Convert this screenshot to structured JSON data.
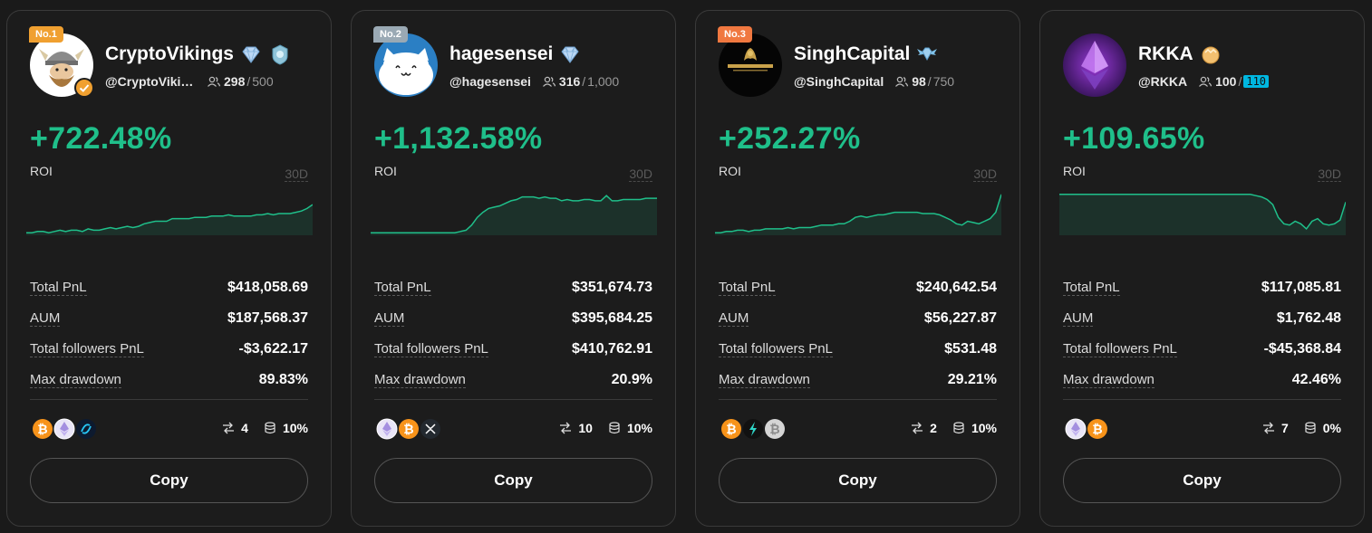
{
  "colors": {
    "positive": "#1fbf8a",
    "background": "#1c1c1c",
    "border": "#3a3a3a",
    "highlight": "#00b7e0"
  },
  "labels": {
    "roi": "ROI",
    "period": "30D",
    "total_pnl": "Total PnL",
    "aum": "AUM",
    "followers_pnl": "Total followers PnL",
    "max_drawdown": "Max drawdown",
    "copy": "Copy"
  },
  "cards": [
    {
      "rank": "No.1",
      "name": "CryptoVikings",
      "handle": "@CryptoVikings",
      "followers": "298",
      "capacity": "500",
      "roi": "+722.48%",
      "total_pnl": "$418,058.69",
      "aum": "$187,568.37",
      "followers_pnl": "-$3,622.17",
      "max_drawdown": "89.83%",
      "coins": [
        "bitcoin",
        "ethereum",
        "injective"
      ],
      "copy_trades": "4",
      "profit_share": "10%",
      "roi_series": [
        2,
        2,
        3,
        3,
        2,
        3,
        4,
        3,
        4,
        4,
        3,
        5,
        4,
        4,
        5,
        6,
        5,
        6,
        7,
        6,
        7,
        9,
        10,
        11,
        11,
        11,
        13,
        13,
        13,
        13,
        14,
        14,
        14,
        15,
        15,
        15,
        16,
        15,
        15,
        15,
        15,
        16,
        16,
        17,
        16,
        17,
        17,
        17,
        18,
        19,
        21,
        24
      ]
    },
    {
      "rank": "No.2",
      "name": "hagesensei",
      "handle": "@hagesensei",
      "followers": "316",
      "capacity": "1,000",
      "roi": "+1,132.58%",
      "total_pnl": "$351,674.73",
      "aum": "$395,684.25",
      "followers_pnl": "$410,762.91",
      "max_drawdown": "20.9%",
      "coins": [
        "ethereum",
        "bitcoin",
        "xrp"
      ],
      "copy_trades": "10",
      "profit_share": "10%",
      "roi_series": [
        2,
        2,
        2,
        2,
        2,
        2,
        2,
        2,
        2,
        2,
        2,
        2,
        2,
        2,
        2,
        2,
        3,
        4,
        8,
        14,
        18,
        21,
        22,
        23,
        25,
        27,
        28,
        30,
        30,
        30,
        29,
        30,
        29,
        29,
        27,
        28,
        27,
        27,
        28,
        28,
        27,
        27,
        31,
        27,
        27,
        28,
        28,
        28,
        28,
        29,
        29,
        29
      ]
    },
    {
      "rank": "No.3",
      "name": "SinghCapital",
      "handle": "@SinghCapital",
      "followers": "98",
      "capacity": "750",
      "roi": "+252.27%",
      "total_pnl": "$240,642.54",
      "aum": "$56,227.87",
      "followers_pnl": "$531.48",
      "max_drawdown": "29.21%",
      "coins": [
        "bitcoin",
        "chainlink",
        "bitcoin-gray"
      ],
      "copy_trades": "2",
      "profit_share": "10%",
      "roi_series": [
        2,
        2,
        3,
        3,
        4,
        4,
        3,
        4,
        4,
        5,
        5,
        5,
        5,
        6,
        5,
        6,
        6,
        6,
        7,
        8,
        8,
        8,
        9,
        9,
        11,
        14,
        15,
        14,
        15,
        16,
        16,
        17,
        18,
        18,
        18,
        18,
        18,
        17,
        17,
        17,
        16,
        14,
        12,
        9,
        8,
        11,
        10,
        9,
        11,
        13,
        18,
        32
      ]
    },
    {
      "rank": "",
      "name": "RKKA",
      "handle": "@RKKA",
      "followers": "100",
      "capacity": "110",
      "roi": "+109.65%",
      "total_pnl": "$117,085.81",
      "aum": "$1,762.48",
      "followers_pnl": "-$45,368.84",
      "max_drawdown": "42.46%",
      "coins": [
        "ethereum",
        "bitcoin"
      ],
      "copy_trades": "7",
      "profit_share": "0%",
      "roi_series": [
        32,
        32,
        32,
        32,
        32,
        32,
        32,
        32,
        32,
        32,
        32,
        32,
        32,
        32,
        32,
        32,
        32,
        32,
        32,
        32,
        32,
        32,
        32,
        32,
        32,
        32,
        32,
        32,
        32,
        32,
        32,
        32,
        32,
        32,
        32,
        31,
        30,
        28,
        24,
        14,
        9,
        8,
        11,
        9,
        5,
        11,
        13,
        9,
        8,
        9,
        12,
        26
      ]
    }
  ]
}
